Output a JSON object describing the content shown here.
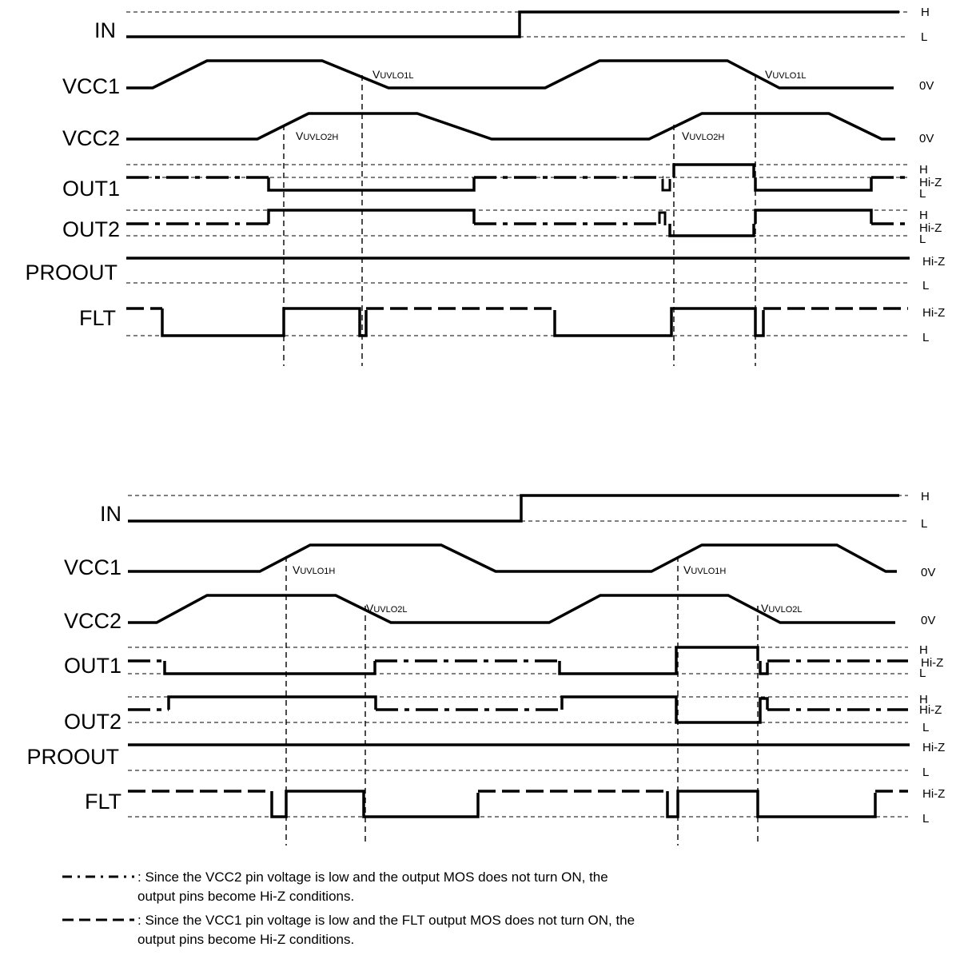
{
  "diagram_a": {
    "signals": [
      {
        "name": "IN",
        "levels": [
          "H",
          "L"
        ]
      },
      {
        "name": "VCC1",
        "levels": [
          "0V"
        ]
      },
      {
        "name": "VCC2",
        "levels": [
          "0V"
        ]
      },
      {
        "name": "OUT1",
        "levels": [
          "H",
          "Hi-Z",
          "L"
        ]
      },
      {
        "name": "OUT2",
        "levels": [
          "H",
          "Hi-Z",
          "L"
        ]
      },
      {
        "name": "PROOUT",
        "levels": [
          "Hi-Z",
          "L"
        ]
      },
      {
        "name": "FLT",
        "levels": [
          "Hi-Z",
          "L"
        ]
      }
    ],
    "thresholds": [
      {
        "main": "V",
        "sub": "UVLO1L"
      },
      {
        "main": "V",
        "sub": "UVLO2H"
      },
      {
        "main": "V",
        "sub": "UVLO2H"
      },
      {
        "main": "V",
        "sub": "UVLO1L"
      }
    ]
  },
  "diagram_b": {
    "signals": [
      {
        "name": "IN",
        "levels": [
          "H",
          "L"
        ]
      },
      {
        "name": "VCC1",
        "levels": [
          "0V"
        ]
      },
      {
        "name": "VCC2",
        "levels": [
          "0V"
        ]
      },
      {
        "name": "OUT1",
        "levels": [
          "H",
          "Hi-Z",
          "L"
        ]
      },
      {
        "name": "OUT2",
        "levels": [
          "H",
          "Hi-Z",
          "L"
        ]
      },
      {
        "name": "PROOUT",
        "levels": [
          "Hi-Z",
          "L"
        ]
      },
      {
        "name": "FLT",
        "levels": [
          "Hi-Z",
          "L"
        ]
      }
    ],
    "thresholds": [
      {
        "main": "V",
        "sub": "UVLO1H"
      },
      {
        "main": "V",
        "sub": "UVLO2L"
      },
      {
        "main": "V",
        "sub": "UVLO1H"
      },
      {
        "main": "V",
        "sub": "UVLO2L"
      }
    ]
  },
  "legend": [
    {
      "style": "dash-dot",
      "lines": [
        ": Since the VCC2 pin voltage is low and the output MOS does not turn ON, the",
        "output pins become Hi-Z conditions."
      ]
    },
    {
      "style": "dashed",
      "lines": [
        ": Since the VCC1 pin voltage is low and the FLT output MOS does not turn ON, the",
        "output pins become Hi-Z conditions."
      ]
    }
  ]
}
